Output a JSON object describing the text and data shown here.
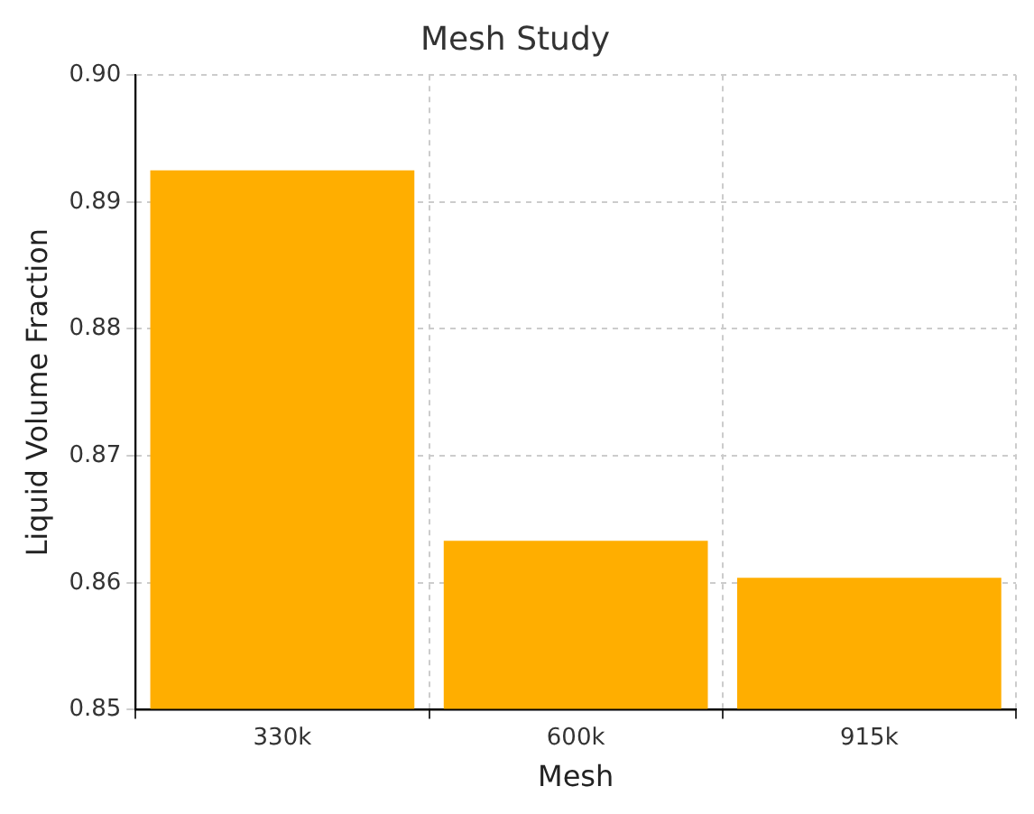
{
  "chart_data": {
    "type": "bar",
    "title": "Mesh Study",
    "xlabel": "Mesh",
    "ylabel": "Liquid Volume Fraction",
    "categories": [
      "330k",
      "600k",
      "915k"
    ],
    "values": [
      0.8925,
      0.8633,
      0.8604
    ],
    "color": "#ffae00",
    "ylim": [
      0.85,
      0.9
    ],
    "yticks": [
      0.85,
      0.86,
      0.87,
      0.88,
      0.89,
      {
        "value": 0.9,
        "label": "0.90"
      }
    ],
    "grid": true
  }
}
